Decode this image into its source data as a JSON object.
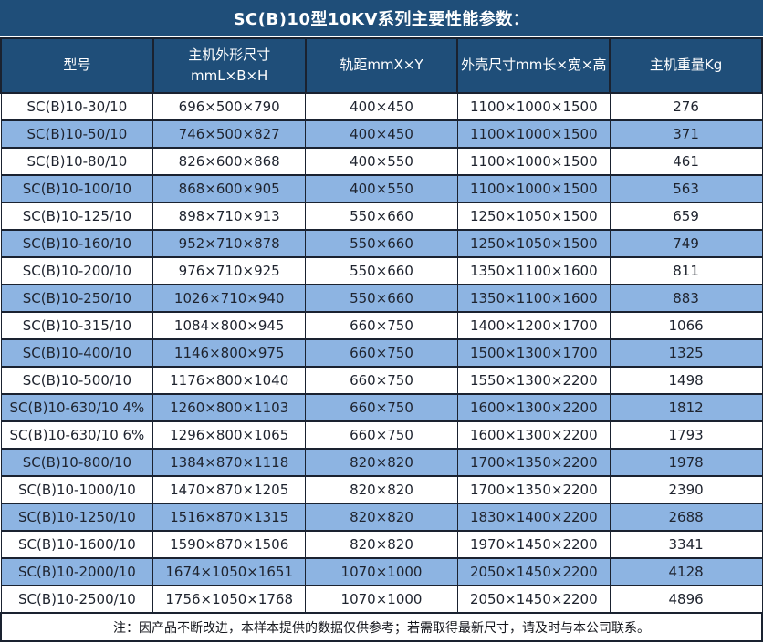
{
  "title": "SC(B)10型10KV系列主要性能参数：",
  "table": {
    "columns": [
      {
        "label": "型号"
      },
      {
        "label": "主机外形尺寸",
        "sublabel": "mmL×B×H"
      },
      {
        "label": "轨距mmX×Y"
      },
      {
        "label": "外壳尺寸mm长×宽×高"
      },
      {
        "label": "主机重量Kg"
      }
    ],
    "rows": [
      [
        "SC(B)10-30/10",
        "696×500×790",
        "400×450",
        "1100×1000×1500",
        "276"
      ],
      [
        "SC(B)10-50/10",
        "746×500×827",
        "400×450",
        "1100×1000×1500",
        "371"
      ],
      [
        "SC(B)10-80/10",
        "826×600×868",
        "400×550",
        "1100×1000×1500",
        "461"
      ],
      [
        "SC(B)10-100/10",
        "868×600×905",
        "400×550",
        "1100×1000×1500",
        "563"
      ],
      [
        "SC(B)10-125/10",
        "898×710×913",
        "550×660",
        "1250×1050×1500",
        "659"
      ],
      [
        "SC(B)10-160/10",
        "952×710×878",
        "550×660",
        "1250×1050×1500",
        "749"
      ],
      [
        "SC(B)10-200/10",
        "976×710×925",
        "550×660",
        "1350×1100×1600",
        "811"
      ],
      [
        "SC(B)10-250/10",
        "1026×710×940",
        "550×660",
        "1350×1100×1600",
        "883"
      ],
      [
        "SC(B)10-315/10",
        "1084×800×945",
        "660×750",
        "1400×1200×1700",
        "1066"
      ],
      [
        "SC(B)10-400/10",
        "1146×800×975",
        "660×750",
        "1500×1300×1700",
        "1325"
      ],
      [
        "SC(B)10-500/10",
        "1176×800×1040",
        "660×750",
        "1550×1300×2200",
        "1498"
      ],
      [
        "SC(B)10-630/10 4%",
        "1260×800×1103",
        "660×750",
        "1600×1300×2200",
        "1812"
      ],
      [
        "SC(B)10-630/10 6%",
        "1296×800×1065",
        "660×750",
        "1600×1300×2200",
        "1793"
      ],
      [
        "SC(B)10-800/10",
        "1384×870×1118",
        "820×820",
        "1700×1350×2200",
        "1978"
      ],
      [
        "SC(B)10-1000/10",
        "1470×870×1205",
        "820×820",
        "1700×1350×2200",
        "2390"
      ],
      [
        "SC(B)10-1250/10",
        "1516×870×1315",
        "820×820",
        "1830×1400×2200",
        "2688"
      ],
      [
        "SC(B)10-1600/10",
        "1590×870×1506",
        "820×820",
        "1970×1450×2200",
        "3341"
      ],
      [
        "SC(B)10-2000/10",
        "1674×1050×1651",
        "1070×1000",
        "2050×1450×2200",
        "4128"
      ],
      [
        "SC(B)10-2500/10",
        "1756×1050×1768",
        "1070×1000",
        "2050×1450×2200",
        "4896"
      ]
    ]
  },
  "note": "注：因产品不断改进，本样本提供的数据仅供参考；若需取得最新尺寸，请及时与本公司联系。",
  "colors": {
    "header_bg": "#1F4E79",
    "alt_row_bg": "#8DB4E2",
    "grid_line": "#1A2230",
    "header_text": "#FFFFFF",
    "body_text": "#1E232E"
  }
}
